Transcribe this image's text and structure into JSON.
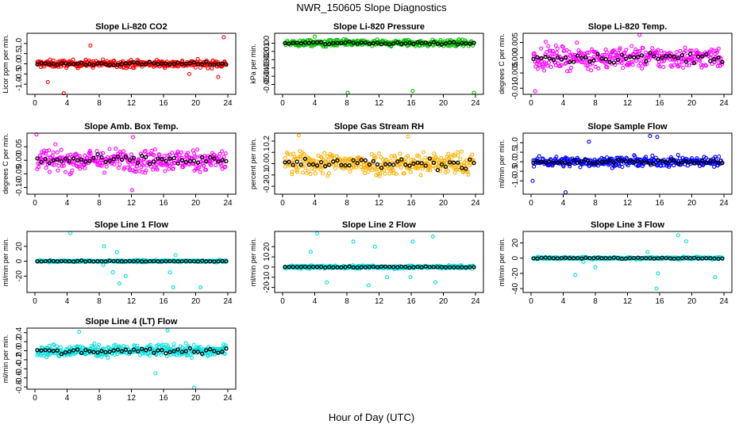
{
  "title": "NWR_150605  Slope Diagnostics",
  "xlabel": "Hour of Day (UTC)",
  "chart_data": [
    {
      "type": "scatter",
      "title": "Slope Li-820 CO2",
      "ylabel": "Licor ppm per min.",
      "color": "#ff0000",
      "xlim": [
        0,
        24
      ],
      "ylim": [
        -1.5,
        1.5
      ],
      "yticks": [
        -1.0,
        -0.5,
        0.0,
        0.5,
        1.0
      ],
      "ytick_labels": [
        "-1.0",
        "-0.5",
        "0.0",
        "0.5",
        "1.0"
      ],
      "xticks": [
        0,
        4,
        8,
        12,
        16,
        20,
        24
      ],
      "xtick_labels": [
        "0",
        "4",
        "8",
        "12",
        "16",
        "20",
        "24"
      ],
      "spread": 0.18,
      "outliers": [
        [
          1.6,
          -0.9
        ],
        [
          3.6,
          -1.45
        ],
        [
          6.9,
          0.9
        ],
        [
          23.5,
          1.3
        ],
        [
          19.2,
          -0.5
        ],
        [
          22.8,
          -0.65
        ]
      ]
    },
    {
      "type": "scatter",
      "title": "Slope Li-820 Pressure",
      "ylabel": "kPa per min.",
      "color": "#00c000",
      "xlim": [
        0,
        24
      ],
      "ylim": [
        -0.062,
        0.012
      ],
      "yticks": [
        -0.05,
        -0.04,
        -0.03,
        -0.02,
        -0.01,
        0.0
      ],
      "ytick_labels": [
        "-0.05",
        "-0.04",
        "-0.03",
        "-0.02",
        "-0.01",
        "0.00"
      ],
      "xticks": [
        0,
        4,
        8,
        12,
        16,
        20,
        24
      ],
      "xtick_labels": [
        "0",
        "4",
        "8",
        "12",
        "16",
        "20",
        "24"
      ],
      "spread": 0.004,
      "outliers": [
        [
          8.1,
          -0.06
        ],
        [
          16.2,
          -0.058
        ],
        [
          23.8,
          -0.06
        ],
        [
          4,
          0.008
        ]
      ]
    },
    {
      "type": "scatter",
      "title": "Slope Li-820 Temp.",
      "ylabel": "degrees C per min.",
      "color": "#ff00ff",
      "xlim": [
        0,
        24
      ],
      "ylim": [
        -0.012,
        0.008
      ],
      "yticks": [
        -0.01,
        -0.005,
        0.0,
        0.005
      ],
      "ytick_labels": [
        "-0.010",
        "-0.005",
        "0.000",
        "0.005"
      ],
      "xticks": [
        0,
        4,
        8,
        12,
        16,
        20,
        24
      ],
      "xtick_labels": [
        "0",
        "4",
        "8",
        "12",
        "16",
        "20",
        "24"
      ],
      "spread": 0.0035,
      "outliers": [
        [
          0.5,
          -0.011
        ],
        [
          13.5,
          0.0075
        ]
      ]
    },
    {
      "type": "scatter",
      "title": "Slope Amb. Box Temp.",
      "ylabel": "degrees C per min.",
      "color": "#ff00ff",
      "xlim": [
        0,
        24
      ],
      "ylim": [
        -0.125,
        0.1
      ],
      "yticks": [
        -0.1,
        -0.05,
        0.0,
        0.05
      ],
      "ytick_labels": [
        "-0.10",
        "-0.05",
        "0.00",
        "0.05"
      ],
      "xticks": [
        0,
        4,
        8,
        12,
        16,
        20,
        24
      ],
      "xtick_labels": [
        "0",
        "4",
        "8",
        "12",
        "16",
        "20",
        "24"
      ],
      "spread": 0.04,
      "outliers": [
        [
          0.2,
          0.095
        ],
        [
          12.1,
          -0.11
        ],
        [
          12.2,
          0.085
        ]
      ]
    },
    {
      "type": "scatter",
      "title": "Slope Gas Stream RH",
      "ylabel": "percent per min.",
      "color": "#ffb000",
      "xlim": [
        0,
        24
      ],
      "ylim": [
        -0.27,
        0.27
      ],
      "yticks": [
        -0.2,
        -0.1,
        0.0,
        0.1,
        0.2
      ],
      "ytick_labels": [
        "-0.2",
        "-0.1",
        "0.0",
        "0.1",
        "0.2"
      ],
      "xticks": [
        0,
        4,
        8,
        12,
        16,
        20,
        24
      ],
      "xtick_labels": [
        "0",
        "4",
        "8",
        "12",
        "16",
        "20",
        "24"
      ],
      "spread": 0.1,
      "outliers": [
        [
          2,
          0.25
        ],
        [
          15.6,
          0.24
        ]
      ]
    },
    {
      "type": "scatter",
      "title": "Slope Sample Flow",
      "ylabel": "ml/min per min.",
      "color": "#0000ff",
      "xlim": [
        0,
        24
      ],
      "ylim": [
        -1.7,
        1.5
      ],
      "yticks": [
        -1.0,
        -0.5,
        0.0,
        0.5,
        1.0
      ],
      "ytick_labels": [
        "-1.0",
        "-0.5",
        "0.0",
        "0.5",
        "1.0"
      ],
      "xticks": [
        0,
        4,
        8,
        12,
        16,
        20,
        24
      ],
      "xtick_labels": [
        "0",
        "4",
        "8",
        "12",
        "16",
        "20",
        "24"
      ],
      "spread": 0.25,
      "outliers": [
        [
          4.3,
          -1.6
        ],
        [
          14.8,
          1.35
        ],
        [
          15.7,
          1.3
        ],
        [
          7.2,
          1.05
        ],
        [
          0.2,
          -1.0
        ]
      ]
    },
    {
      "type": "scatter",
      "title": "Slope Line 1 Flow",
      "ylabel": "ml/min per min.",
      "color": "#00e0e0",
      "xlim": [
        0,
        24
      ],
      "ylim": [
        -42,
        40
      ],
      "yticks": [
        -20,
        0,
        20
      ],
      "ytick_labels": [
        "-20",
        "0",
        "20"
      ],
      "xticks": [
        0,
        4,
        8,
        12,
        16,
        20,
        24
      ],
      "xtick_labels": [
        "0",
        "4",
        "8",
        "12",
        "16",
        "20",
        "24"
      ],
      "spread": 1.2,
      "outliers": [
        [
          4.4,
          38
        ],
        [
          8.6,
          20
        ],
        [
          9.7,
          -15
        ],
        [
          10.5,
          -30
        ],
        [
          11.3,
          -20
        ],
        [
          16.8,
          -15
        ],
        [
          17.2,
          -35
        ],
        [
          20.6,
          -35
        ],
        [
          8.5,
          -5
        ],
        [
          10.2,
          12
        ],
        [
          17.5,
          8
        ]
      ]
    },
    {
      "type": "scatter",
      "title": "Slope Line 2 Flow",
      "ylabel": "ml/min per min.",
      "color": "#00e0e0",
      "xlim": [
        0,
        24
      ],
      "ylim": [
        -25,
        35
      ],
      "yticks": [
        -20,
        -10,
        0,
        10,
        20
      ],
      "ytick_labels": [
        "-20",
        "-10",
        "0",
        "10",
        "20"
      ],
      "xticks": [
        0,
        4,
        8,
        12,
        16,
        20,
        24
      ],
      "xtick_labels": [
        "0",
        "4",
        "8",
        "12",
        "16",
        "20",
        "24"
      ],
      "spread": 1.5,
      "outliers": [
        [
          4.3,
          33
        ],
        [
          5.5,
          -15
        ],
        [
          8.8,
          25
        ],
        [
          10.7,
          -18
        ],
        [
          11.5,
          20
        ],
        [
          15.9,
          -10
        ],
        [
          16.2,
          25
        ],
        [
          18.7,
          30
        ],
        [
          19.0,
          -15
        ],
        [
          3.5,
          15
        ],
        [
          13,
          -10
        ]
      ]
    },
    {
      "type": "scatter",
      "title": "Slope Line 3 Flow",
      "ylabel": "ml/min per min.",
      "color": "#00e0e0",
      "xlim": [
        0,
        24
      ],
      "ylim": [
        -45,
        35
      ],
      "yticks": [
        -40,
        -20,
        0,
        20
      ],
      "ytick_labels": [
        "-40",
        "-20",
        "0",
        "20"
      ],
      "xticks": [
        0,
        4,
        8,
        12,
        16,
        20,
        24
      ],
      "xtick_labels": [
        "0",
        "4",
        "8",
        "12",
        "16",
        "20",
        "24"
      ],
      "spread": 1.5,
      "outliers": [
        [
          5.5,
          -22
        ],
        [
          8,
          -12
        ],
        [
          15.6,
          -40
        ],
        [
          15.8,
          -20
        ],
        [
          18.3,
          30
        ],
        [
          19.3,
          22
        ],
        [
          22.9,
          -25
        ],
        [
          14.5,
          8
        ],
        [
          6.5,
          -5
        ]
      ]
    },
    {
      "type": "scatter",
      "title": "Slope Line 4 (LT) Flow",
      "ylabel": "ml/min per min.",
      "color": "#00e0e0",
      "xlim": [
        0,
        24
      ],
      "ylim": [
        -0.85,
        0.5
      ],
      "yticks": [
        -0.8,
        -0.6,
        -0.4,
        -0.2,
        0.0,
        0.2,
        0.4
      ],
      "ytick_labels": [
        "-0.8",
        "-0.6",
        "-0.4",
        "-0.2",
        "0.0",
        "0.2",
        "0.4"
      ],
      "xticks": [
        0,
        4,
        8,
        12,
        16,
        20,
        24
      ],
      "xtick_labels": [
        "0",
        "4",
        "8",
        "12",
        "16",
        "20",
        "24"
      ],
      "spread": 0.13,
      "outliers": [
        [
          5.5,
          0.42
        ],
        [
          16.5,
          0.45
        ],
        [
          19.8,
          -0.82
        ],
        [
          15,
          -0.5
        ]
      ]
    }
  ]
}
